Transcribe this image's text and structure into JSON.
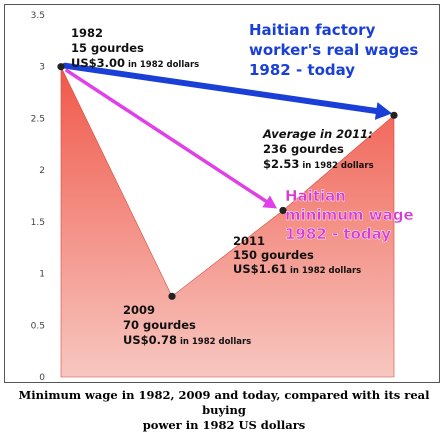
{
  "chart_data": {
    "type": "area",
    "ylim": [
      0,
      3.5
    ],
    "y_ticks": [
      "0",
      "0.5",
      "1",
      "1.5",
      "2",
      "2.5",
      "3",
      "3.5"
    ],
    "grid": false,
    "series": [
      {
        "name": "Haitian minimum wage 1982 - today",
        "x": [
          "1982",
          "2009",
          "2011"
        ],
        "values": [
          3.0,
          0.78,
          1.61
        ],
        "color": "#e8453c"
      },
      {
        "name": "Haitian factory worker's real wages 1982 - today",
        "x": [
          "1982",
          "2011"
        ],
        "values": [
          3.0,
          2.53
        ],
        "color": "#1a3fd6"
      }
    ],
    "annotations": {
      "p1982": {
        "line1": "1982",
        "line2": "15 gourdes",
        "line3": "US$3.00",
        "line3_small": " in 1982 dollars"
      },
      "p2009": {
        "line1": "2009",
        "line2": "70 gourdes",
        "line3": "US$0.78",
        "line3_small": " in 1982 dollars"
      },
      "p2011_min": {
        "line1": "2011",
        "line2": "150 gourdes",
        "line3": "US$1.61",
        "line3_small": " in 1982 dollars"
      },
      "p2011_avg": {
        "line1": "Average in 2011:",
        "line2": "236 gourdes",
        "line3": "$2.53",
        "line3_small": " in 1982 dollars"
      }
    },
    "labels": {
      "factory_line1": "Haitian factory",
      "factory_line2": "worker's real wages",
      "factory_line3": "1982 - today",
      "minimum_line1": "Haitian",
      "minimum_line2": "minimum wage",
      "minimum_line3": "1982 - today"
    },
    "colors": {
      "area_top": "#f0584a",
      "area_bottom": "#f7c7c0",
      "blue_arrow": "#1a3fd6",
      "magenta_arrow": "#e040e8",
      "marker": "#222222"
    }
  },
  "caption": {
    "line1": "Minimum wage in 1982, 2009 and today, compared with its real buying",
    "line2": "power in 1982 US dollars"
  }
}
